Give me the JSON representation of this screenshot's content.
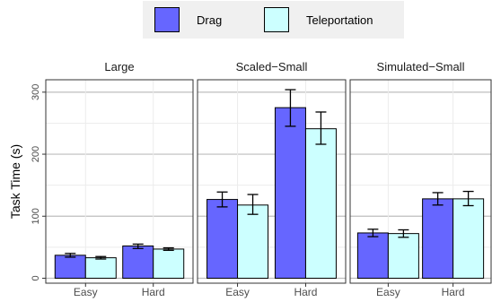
{
  "legend": {
    "items": [
      {
        "label": "Drag",
        "color": "#6666ff"
      },
      {
        "label": "Teleportation",
        "color": "#ccffff"
      }
    ]
  },
  "chart_data": {
    "type": "bar",
    "ylabel": "Task Time (s)",
    "xlabel": "",
    "ylim": [
      -8,
      320
    ],
    "yticks": [
      0,
      100,
      200,
      300
    ],
    "grid": true,
    "legend_position": "top",
    "categories": [
      "Easy",
      "Hard"
    ],
    "panels": [
      {
        "title": "Large",
        "series": [
          {
            "name": "Drag",
            "values": [
              37,
              52
            ],
            "error": [
              [
                34,
                40
              ],
              [
                48,
                55
              ]
            ]
          },
          {
            "name": "Teleportation",
            "values": [
              33,
              47
            ],
            "error": [
              [
                31,
                35
              ],
              [
                45,
                49
              ]
            ]
          }
        ]
      },
      {
        "title": "Scaled−Small",
        "series": [
          {
            "name": "Drag",
            "values": [
              127,
              275
            ],
            "error": [
              [
                115,
                139
              ],
              [
                245,
                304
              ]
            ]
          },
          {
            "name": "Teleportation",
            "values": [
              118,
              241
            ],
            "error": [
              [
                103,
                135
              ],
              [
                216,
                268
              ]
            ]
          }
        ]
      },
      {
        "title": "Simulated−Small",
        "series": [
          {
            "name": "Drag",
            "values": [
              73,
              128
            ],
            "error": [
              [
                67,
                79
              ],
              [
                118,
                138
              ]
            ]
          },
          {
            "name": "Teleportation",
            "values": [
              72,
              128
            ],
            "error": [
              [
                66,
                78
              ],
              [
                117,
                140
              ]
            ]
          }
        ]
      }
    ]
  }
}
